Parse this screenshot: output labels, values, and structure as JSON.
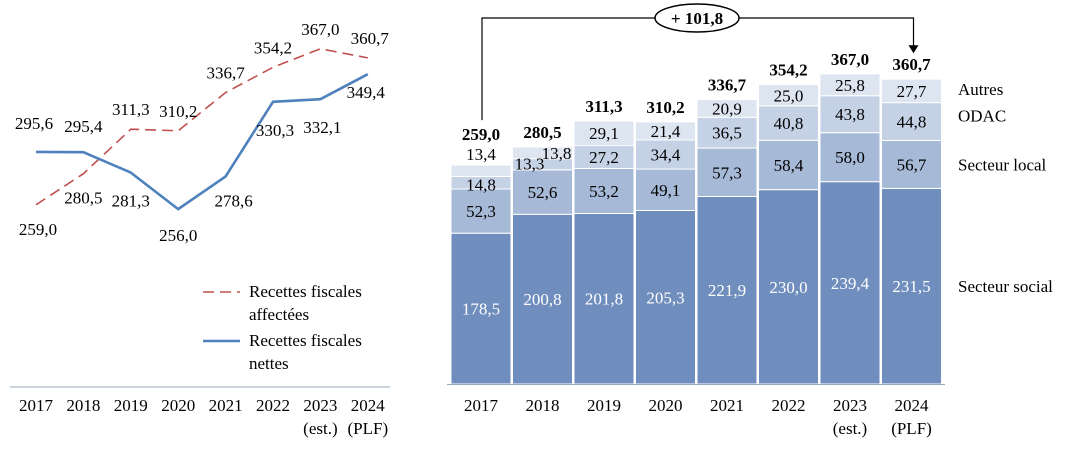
{
  "chart_data": [
    {
      "type": "line",
      "categories": [
        "2017",
        "2018",
        "2019",
        "2020",
        "2021",
        "2022",
        "2023",
        "2024"
      ],
      "category_sublabels": [
        "",
        "",
        "",
        "",
        "",
        "",
        "(est.)",
        "(PLF)"
      ],
      "series": [
        {
          "name": "Recettes fiscales affectées",
          "values": [
            259.0,
            280.5,
            311.3,
            310.2,
            336.7,
            354.2,
            367.0,
            360.7
          ],
          "labels": [
            "259,0",
            "280,5",
            "311,3",
            "310,2",
            "336,7",
            "354,2",
            "367,0",
            "360,7"
          ],
          "color": "#c0504d",
          "style": "dashed"
        },
        {
          "name": "Recettes fiscales nettes",
          "values": [
            295.6,
            295.4,
            281.3,
            256.0,
            278.6,
            330.3,
            332.1,
            349.4
          ],
          "labels": [
            "295,6",
            "295,4",
            "281,3",
            "256,0",
            "278,6",
            "330,3",
            "332,1",
            "349,4"
          ],
          "color": "#4f81bd",
          "style": "solid"
        }
      ],
      "legend": [
        {
          "lines": [
            "Recettes fiscales",
            "affectées"
          ]
        },
        {
          "lines": [
            "Recettes fiscales",
            "nettes"
          ]
        }
      ],
      "legend_position": "bottom-right",
      "ylim": [
        245,
        380
      ],
      "grid": false
    },
    {
      "type": "bar",
      "stacked": true,
      "categories": [
        "2017",
        "2018",
        "2019",
        "2020",
        "2021",
        "2022",
        "2023",
        "2024"
      ],
      "category_sublabels": [
        "",
        "",
        "",
        "",
        "",
        "",
        "(est.)",
        "(PLF)"
      ],
      "series": [
        {
          "name": "Secteur social",
          "values": [
            178.5,
            200.8,
            201.8,
            205.3,
            221.9,
            230.0,
            239.4,
            231.5
          ],
          "labels": [
            "178,5",
            "200,8",
            "201,8",
            "205,3",
            "221,9",
            "230,0",
            "239,4",
            "231,5"
          ],
          "color": "#6f8dbd",
          "label_color": "#ffffff"
        },
        {
          "name": "Secteur local",
          "values": [
            52.3,
            52.6,
            53.2,
            49.1,
            57.3,
            58.4,
            58.0,
            56.7
          ],
          "labels": [
            "52,3",
            "52,6",
            "53,2",
            "49,1",
            "57,3",
            "58,4",
            "58,0",
            "56,7"
          ],
          "color": "#a6b9d6",
          "label_color": "#000000"
        },
        {
          "name": "ODAC",
          "values": [
            14.8,
            13.3,
            27.2,
            34.4,
            36.5,
            40.8,
            43.8,
            44.8
          ],
          "labels": [
            "14,8",
            "13,3",
            "27,2",
            "34,4",
            "36,5",
            "40,8",
            "43,8",
            "44,8"
          ],
          "color": "#c5d2e6",
          "label_color": "#000000"
        },
        {
          "name": "Autres",
          "values": [
            13.4,
            13.8,
            29.1,
            21.4,
            20.9,
            25.0,
            25.8,
            27.7
          ],
          "labels": [
            "13,4",
            "13,8",
            "29,1",
            "21,4",
            "20,9",
            "25,0",
            "25,8",
            "27,7"
          ],
          "color": "#dde5f1",
          "label_color": "#000000"
        }
      ],
      "totals": [
        259.0,
        280.5,
        311.3,
        310.2,
        336.7,
        354.2,
        367.0,
        360.7
      ],
      "total_labels": [
        "259,0",
        "280,5",
        "311,3",
        "310,2",
        "336,7",
        "354,2",
        "367,0",
        "360,7"
      ],
      "annotation": "+ 101,8",
      "legend_position": "right",
      "ylim": [
        0,
        370
      ],
      "grid": false
    }
  ]
}
